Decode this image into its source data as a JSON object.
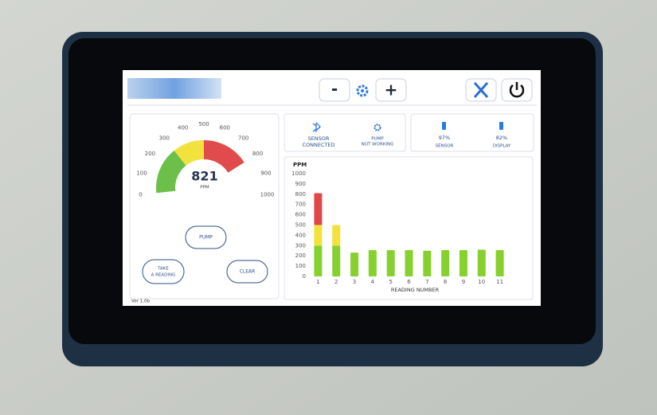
{
  "toolbar": {
    "decrease": "-",
    "increase": "+"
  },
  "gauge": {
    "value": 821,
    "unit": "PPM",
    "lim": [
      0,
      1000
    ],
    "ticks": [
      0,
      100,
      200,
      300,
      400,
      500,
      600,
      700,
      800,
      900,
      1000
    ],
    "bands": [
      {
        "from": 0,
        "to": 300,
        "color": "#6cc04a"
      },
      {
        "from": 300,
        "to": 500,
        "color": "#f2e23e"
      },
      {
        "from": 500,
        "to": 800,
        "color": "#e24b4b"
      }
    ]
  },
  "status": {
    "bluetooth": [
      "SENSOR",
      "CONNECTED"
    ],
    "pump": [
      "PUMP",
      "NOT WORKING"
    ],
    "sensor_battery": {
      "level": "97%",
      "label": "SENSOR"
    },
    "display_battery": {
      "level": "82%",
      "label": "DISPLAY"
    }
  },
  "buttons": {
    "pump": "PUMP",
    "take_reading": [
      "TAKE",
      "A READING"
    ],
    "clear": "CLEAR"
  },
  "version": "Ver 1.0b",
  "chart_data": {
    "type": "bar",
    "stacked": true,
    "y_label": "PPM",
    "x_label": "READING NUMBER",
    "categories": [
      "1",
      "2",
      "3",
      "4",
      "5",
      "6",
      "7",
      "8",
      "9",
      "10",
      "11"
    ],
    "series": [
      {
        "color": "#86d12e",
        "values": [
          300,
          300,
          232,
          256,
          256,
          256,
          250,
          256,
          256,
          260,
          256
        ]
      },
      {
        "color": "#f3e23a",
        "values": [
          200,
          200,
          null,
          null,
          null,
          null,
          null,
          null,
          null,
          null,
          null
        ]
      },
      {
        "color": "#e04848",
        "values": [
          310,
          null,
          null,
          null,
          null,
          null,
          null,
          null,
          null,
          null,
          null
        ]
      }
    ],
    "ylim": [
      0,
      1000
    ],
    "yticks": [
      0,
      100,
      200,
      300,
      400,
      500,
      600,
      700,
      800,
      900,
      1000
    ]
  }
}
